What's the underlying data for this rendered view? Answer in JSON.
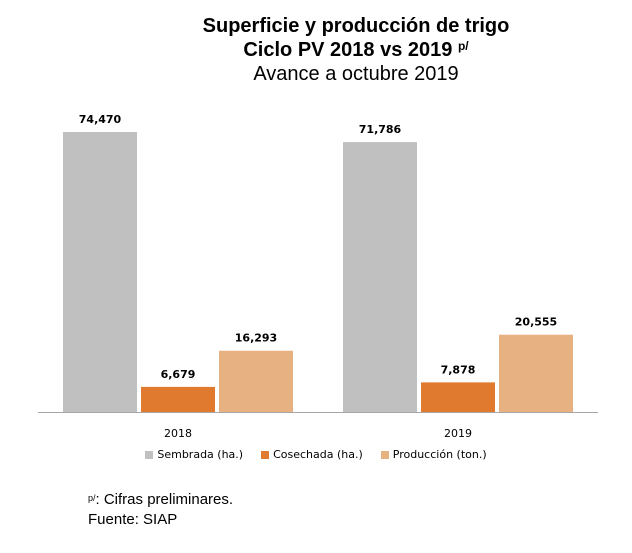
{
  "title": {
    "line1": "Superficie y producción de trigo",
    "line2": "Ciclo PV 2018 vs 2019",
    "line2_sup": "p/",
    "line3": "Avance a octubre 2019"
  },
  "chart_data": {
    "type": "bar",
    "categories": [
      "2018",
      "2019"
    ],
    "series": [
      {
        "name": "Sembrada (ha.)",
        "values": [
          74470,
          71786
        ],
        "labels": [
          "74,470",
          "71,786"
        ],
        "color": "#c0c0c0"
      },
      {
        "name": "Cosechada (ha.)",
        "values": [
          6679,
          7878
        ],
        "labels": [
          "6,679",
          "7,878"
        ],
        "color": "#e07a2e"
      },
      {
        "name": "Producción (ton.)",
        "values": [
          16293,
          20555
        ],
        "labels": [
          "16,293",
          "20,555"
        ],
        "color": "#e8b182"
      }
    ],
    "ylim": [
      0,
      74470
    ],
    "grid": false,
    "legend_position": "bottom"
  },
  "footnotes": {
    "sup": "p/",
    "note1": ": Cifras preliminares.",
    "note2": "Fuente: SIAP"
  }
}
